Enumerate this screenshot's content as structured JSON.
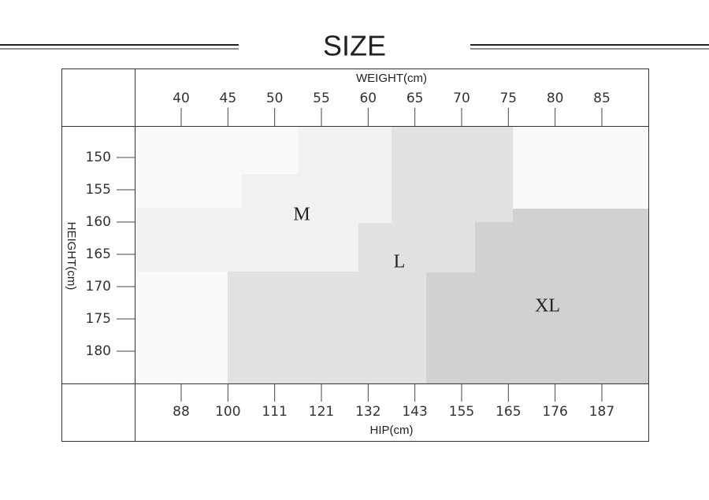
{
  "title": "SIZE",
  "weight": {
    "label": "WEIGHT(cm)",
    "ticks": [
      "40",
      "45",
      "50",
      "55",
      "60",
      "65",
      "70",
      "75",
      "80",
      "85"
    ]
  },
  "height": {
    "label": "HEIGHT(cm)",
    "ticks": [
      "150",
      "155",
      "160",
      "165",
      "170",
      "175",
      "180"
    ]
  },
  "hip": {
    "label": "HIP(cm)",
    "ticks": [
      "88",
      "100",
      "111",
      "121",
      "132",
      "143",
      "155",
      "165",
      "176",
      "187"
    ]
  },
  "regions": [
    "M",
    "L",
    "XL"
  ]
}
